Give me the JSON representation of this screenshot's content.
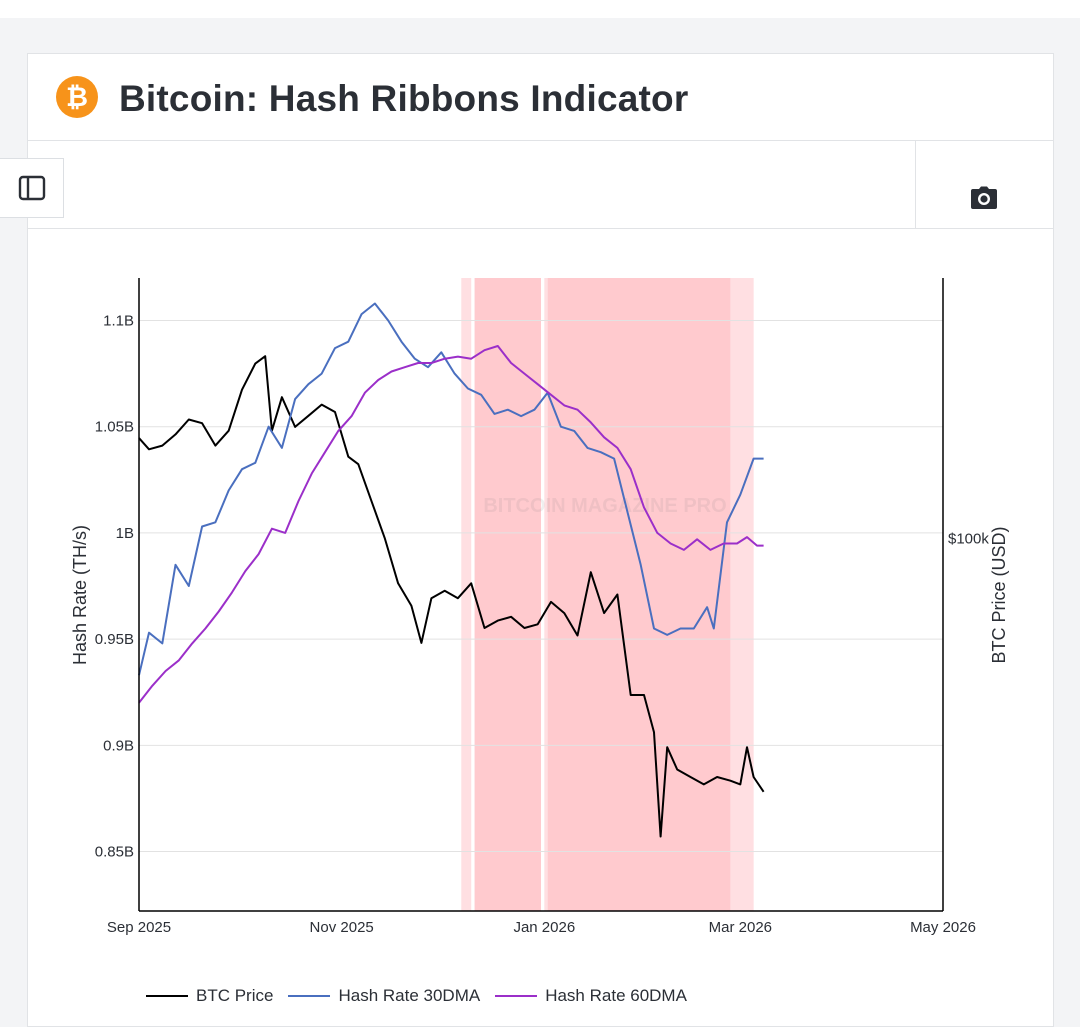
{
  "header": {
    "title": "Bitcoin: Hash Ribbons Indicator",
    "logo_glyph": "₿",
    "logo_icon": "bitcoin-logo-icon"
  },
  "toolbar": {
    "sidebar_icon": "sidebar-panel-icon",
    "camera_icon": "camera-icon"
  },
  "colors": {
    "btc_price": "#000000",
    "hash30": "#4a6fbf",
    "hash60": "#9b2fc9",
    "capitulation": "#ffb8be",
    "logo": "#f7931a"
  },
  "chart_data": {
    "type": "line",
    "title": "Bitcoin: Hash Ribbons Indicator",
    "xlabel": "",
    "ylabel": "Hash Rate (TH/s)",
    "y2label": "BTC Price (USD)",
    "x_ticks": [
      "Sep 2025",
      "Nov 2025",
      "Jan 2026",
      "Mar 2026",
      "May 2026"
    ],
    "x_tick_dates": [
      "2025-09-01",
      "2025-11-01",
      "2026-01-01",
      "2026-03-01",
      "2026-05-01"
    ],
    "xlim": [
      "2025-09-01",
      "2026-05-01"
    ],
    "y_ticks": [
      0.85,
      0.9,
      0.95,
      1.0,
      1.05,
      1.1
    ],
    "y_tick_labels": [
      "0.85B",
      "0.9B",
      "0.95B",
      "1B",
      "1.05B",
      "1.1B"
    ],
    "ylim": [
      0.822,
      1.12
    ],
    "y2_ticks": [
      100000
    ],
    "y2_tick_labels": [
      "$100k"
    ],
    "y2lim": [
      50000,
      135000
    ],
    "y2_note": "right axis shows only the $100k tick; BTC price values are estimates",
    "grid": true,
    "legend_position": "bottom",
    "capitulation_bands": [
      {
        "start": "2025-12-07",
        "end": "2025-12-10",
        "opacity": 0.45
      },
      {
        "start": "2025-12-11",
        "end": "2025-12-31",
        "opacity": 0.75
      },
      {
        "start": "2026-01-01",
        "end": "2026-01-02",
        "opacity": 0.45
      },
      {
        "start": "2026-01-02",
        "end": "2026-02-26",
        "opacity": 0.75
      },
      {
        "start": "2026-02-26",
        "end": "2026-03-05",
        "opacity": 0.45
      }
    ],
    "watermark": "BITCOIN MAGAZINE PRO",
    "series": [
      {
        "name": "BTC Price",
        "axis": "right",
        "x": [
          "2025-09-01",
          "2025-09-04",
          "2025-09-08",
          "2025-09-12",
          "2025-09-16",
          "2025-09-20",
          "2025-09-24",
          "2025-09-28",
          "2025-10-02",
          "2025-10-06",
          "2025-10-09",
          "2025-10-11",
          "2025-10-14",
          "2025-10-18",
          "2025-10-22",
          "2025-10-26",
          "2025-10-30",
          "2025-11-03",
          "2025-11-06",
          "2025-11-10",
          "2025-11-14",
          "2025-11-18",
          "2025-11-22",
          "2025-11-25",
          "2025-11-28",
          "2025-12-02",
          "2025-12-06",
          "2025-12-10",
          "2025-12-14",
          "2025-12-18",
          "2025-12-22",
          "2025-12-26",
          "2025-12-30",
          "2026-01-03",
          "2026-01-07",
          "2026-01-11",
          "2026-01-15",
          "2026-01-19",
          "2026-01-23",
          "2026-01-27",
          "2026-01-31",
          "2026-02-03",
          "2026-02-05",
          "2026-02-07",
          "2026-02-10",
          "2026-02-14",
          "2026-02-18",
          "2026-02-22",
          "2026-02-26",
          "2026-03-01",
          "2026-03-03",
          "2026-03-05",
          "2026-03-08"
        ],
        "y": [
          113500,
          112000,
          112500,
          114000,
          116000,
          115500,
          112500,
          114500,
          120000,
          123500,
          124500,
          114500,
          119000,
          115000,
          116500,
          118000,
          117000,
          111000,
          110000,
          105000,
          100000,
          94000,
          91000,
          86000,
          92000,
          93000,
          92000,
          94000,
          88000,
          89000,
          89500,
          88000,
          88500,
          91500,
          90000,
          87000,
          95500,
          90000,
          92500,
          79000,
          79000,
          74000,
          60000,
          72000,
          69000,
          68000,
          67000,
          68000,
          67500,
          67000,
          72000,
          68000,
          66000
        ]
      },
      {
        "name": "Hash Rate 30DMA",
        "axis": "left",
        "x": [
          "2025-09-01",
          "2025-09-04",
          "2025-09-08",
          "2025-09-12",
          "2025-09-16",
          "2025-09-20",
          "2025-09-24",
          "2025-09-28",
          "2025-10-02",
          "2025-10-06",
          "2025-10-10",
          "2025-10-14",
          "2025-10-18",
          "2025-10-22",
          "2025-10-26",
          "2025-10-30",
          "2025-11-03",
          "2025-11-07",
          "2025-11-11",
          "2025-11-15",
          "2025-11-19",
          "2025-11-23",
          "2025-11-27",
          "2025-12-01",
          "2025-12-05",
          "2025-12-09",
          "2025-12-13",
          "2025-12-17",
          "2025-12-21",
          "2025-12-25",
          "2025-12-29",
          "2026-01-02",
          "2026-01-06",
          "2026-01-10",
          "2026-01-14",
          "2026-01-18",
          "2026-01-22",
          "2026-01-26",
          "2026-01-30",
          "2026-02-03",
          "2026-02-07",
          "2026-02-11",
          "2026-02-15",
          "2026-02-19",
          "2026-02-21",
          "2026-02-25",
          "2026-03-01",
          "2026-03-05",
          "2026-03-08"
        ],
        "y": [
          0.933,
          0.953,
          0.948,
          0.985,
          0.975,
          1.003,
          1.005,
          1.02,
          1.03,
          1.033,
          1.05,
          1.04,
          1.063,
          1.07,
          1.075,
          1.087,
          1.09,
          1.103,
          1.108,
          1.1,
          1.09,
          1.082,
          1.078,
          1.085,
          1.075,
          1.068,
          1.065,
          1.056,
          1.058,
          1.055,
          1.058,
          1.066,
          1.05,
          1.048,
          1.04,
          1.038,
          1.035,
          1.01,
          0.985,
          0.955,
          0.952,
          0.955,
          0.955,
          0.965,
          0.955,
          1.005,
          1.018,
          1.035,
          1.035
        ]
      },
      {
        "name": "Hash Rate 60DMA",
        "axis": "left",
        "x": [
          "2025-09-01",
          "2025-09-05",
          "2025-09-09",
          "2025-09-13",
          "2025-09-17",
          "2025-09-21",
          "2025-09-25",
          "2025-09-29",
          "2025-10-03",
          "2025-10-07",
          "2025-10-11",
          "2025-10-15",
          "2025-10-19",
          "2025-10-23",
          "2025-10-27",
          "2025-10-31",
          "2025-11-04",
          "2025-11-08",
          "2025-11-12",
          "2025-11-16",
          "2025-11-20",
          "2025-11-24",
          "2025-11-28",
          "2025-12-02",
          "2025-12-06",
          "2025-12-10",
          "2025-12-14",
          "2025-12-18",
          "2025-12-22",
          "2025-12-26",
          "2025-12-30",
          "2026-01-03",
          "2026-01-07",
          "2026-01-11",
          "2026-01-15",
          "2026-01-19",
          "2026-01-23",
          "2026-01-27",
          "2026-01-31",
          "2026-02-04",
          "2026-02-08",
          "2026-02-12",
          "2026-02-16",
          "2026-02-20",
          "2026-02-24",
          "2026-02-28",
          "2026-03-03",
          "2026-03-06",
          "2026-03-08"
        ],
        "y": [
          0.92,
          0.928,
          0.935,
          0.94,
          0.948,
          0.955,
          0.963,
          0.972,
          0.982,
          0.99,
          1.002,
          1.0,
          1.015,
          1.028,
          1.038,
          1.048,
          1.055,
          1.066,
          1.072,
          1.076,
          1.078,
          1.08,
          1.08,
          1.082,
          1.083,
          1.082,
          1.086,
          1.088,
          1.08,
          1.075,
          1.07,
          1.065,
          1.06,
          1.058,
          1.052,
          1.045,
          1.04,
          1.03,
          1.012,
          1.0,
          0.995,
          0.992,
          0.997,
          0.992,
          0.995,
          0.995,
          0.998,
          0.994,
          0.994
        ]
      }
    ]
  }
}
